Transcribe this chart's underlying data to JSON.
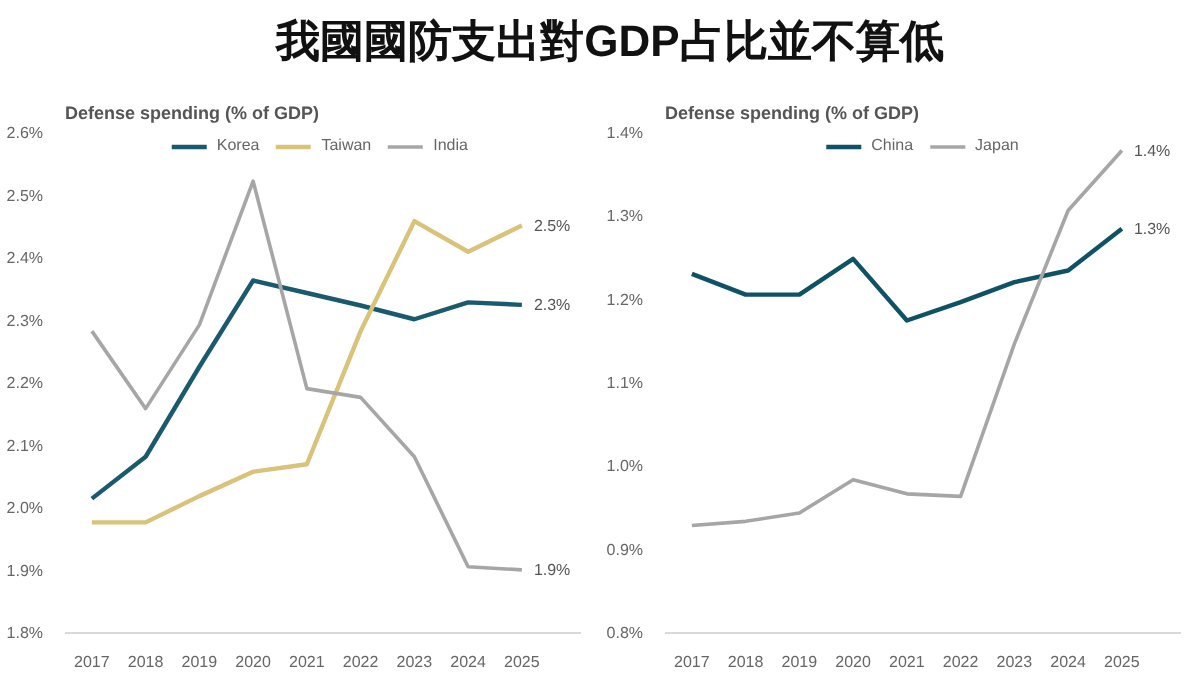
{
  "chart_data": [
    {
      "type": "line",
      "title": "我國國防支出對GDP占比並不算低",
      "subtitle": "Defense spending (% of GDP)",
      "categories": [
        "2017",
        "2018",
        "2019",
        "2020",
        "2021",
        "2022",
        "2023",
        "2024",
        "2025"
      ],
      "series": [
        {
          "name": "Korea",
          "color": "#1a5a6e",
          "values": [
            2.015,
            2.082,
            2.226,
            2.364,
            2.344,
            2.324,
            2.302,
            2.329,
            2.325
          ],
          "value_labels": [
            null,
            null,
            null,
            null,
            null,
            null,
            null,
            null,
            "2.3%"
          ]
        },
        {
          "name": "Taiwan",
          "color": "#d9c27a",
          "values": [
            1.977,
            1.977,
            2.019,
            2.058,
            2.07,
            2.283,
            2.459,
            2.41,
            2.452
          ],
          "value_labels": [
            null,
            null,
            null,
            null,
            null,
            null,
            null,
            null,
            "2.5%"
          ]
        },
        {
          "name": "India",
          "color": "#a6a6a6",
          "values": [
            2.283,
            2.159,
            2.293,
            2.523,
            2.191,
            2.177,
            2.082,
            1.906,
            1.901
          ],
          "value_labels": [
            null,
            null,
            null,
            null,
            null,
            null,
            null,
            null,
            "1.9%"
          ]
        }
      ],
      "ylim": [
        1.8,
        2.6
      ],
      "yticks": [
        {
          "value": 1.8,
          "label": "1.8%"
        },
        {
          "value": 1.9,
          "label": "1.9%"
        },
        {
          "value": 2.0,
          "label": "2.0%"
        },
        {
          "value": 2.1,
          "label": "2.1%"
        },
        {
          "value": 2.2,
          "label": "2.2%"
        },
        {
          "value": 2.3,
          "label": "2.3%"
        },
        {
          "value": 2.4,
          "label": "2.4%"
        },
        {
          "value": 2.5,
          "label": "2.5%"
        },
        {
          "value": 2.6,
          "label": "2.6%"
        }
      ],
      "grid": false,
      "legend": "top",
      "marker": "none",
      "line_style": "solid"
    },
    {
      "type": "line",
      "subtitle": "Defense spending (% of GDP)",
      "categories": [
        "2017",
        "2018",
        "2019",
        "2020",
        "2021",
        "2022",
        "2023",
        "2024",
        "2025"
      ],
      "series": [
        {
          "name": "China",
          "color": "#0f5266",
          "values": [
            1.231,
            1.206,
            1.206,
            1.249,
            1.175,
            1.197,
            1.221,
            1.235,
            1.285
          ],
          "value_labels": [
            null,
            null,
            null,
            null,
            null,
            null,
            null,
            null,
            "1.3%"
          ]
        },
        {
          "name": "Japan",
          "color": "#a6a6a6",
          "values": [
            0.929,
            0.934,
            0.944,
            0.984,
            0.967,
            0.964,
            1.147,
            1.307,
            1.379
          ],
          "value_labels": [
            null,
            null,
            null,
            null,
            null,
            null,
            null,
            null,
            "1.4%"
          ]
        }
      ],
      "ylim": [
        0.8,
        1.4
      ],
      "yticks": [
        {
          "value": 0.8,
          "label": "0.8%"
        },
        {
          "value": 0.9,
          "label": "0.9%"
        },
        {
          "value": 1.0,
          "label": "1.0%"
        },
        {
          "value": 1.1,
          "label": "1.1%"
        },
        {
          "value": 1.2,
          "label": "1.2%"
        },
        {
          "value": 1.3,
          "label": "1.3%"
        },
        {
          "value": 1.4,
          "label": "1.4%"
        }
      ],
      "grid": false,
      "legend": "top",
      "marker": "none",
      "line_style": "solid"
    }
  ]
}
